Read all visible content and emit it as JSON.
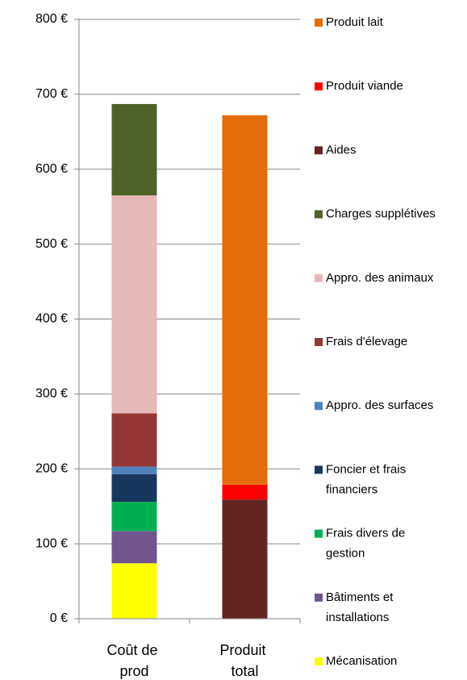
{
  "chart_data": {
    "type": "stacked_bar",
    "categories": [
      "Coût de prod",
      "Produit total"
    ],
    "series": [
      {
        "name": "Mécanisation",
        "color": "#ffff00",
        "values": [
          74,
          null
        ]
      },
      {
        "name": "Bâtiments et installations",
        "color": "#70558f",
        "values": [
          43,
          null
        ]
      },
      {
        "name": "Frais divers de gestion",
        "color": "#00b050",
        "values": [
          39,
          null
        ]
      },
      {
        "name": "Foncier et frais financiers",
        "color": "#17375e",
        "values": [
          37,
          null
        ]
      },
      {
        "name": "Appro. des surfaces",
        "color": "#4f81bd",
        "values": [
          10,
          null
        ]
      },
      {
        "name": "Frais d'élevage",
        "color": "#953735",
        "values": [
          71,
          null
        ]
      },
      {
        "name": "Appro. des animaux",
        "color": "#e6b9b8",
        "values": [
          291,
          null
        ]
      },
      {
        "name": "Charges supplétives",
        "color": "#4f6228",
        "values": [
          122,
          null
        ]
      },
      {
        "name": "Aides",
        "color": "#632523",
        "values": [
          null,
          159
        ]
      },
      {
        "name": "Produit viande",
        "color": "#ff0000",
        "values": [
          null,
          20
        ]
      },
      {
        "name": "Produit lait",
        "color": "#e46c0a",
        "values": [
          null,
          493
        ]
      }
    ],
    "ylim": [
      0,
      800
    ],
    "yticks": [
      {
        "value": 0,
        "label": "0 €"
      },
      {
        "value": 100,
        "label": "100 €"
      },
      {
        "value": 200,
        "label": "200 €"
      },
      {
        "value": 300,
        "label": "300 €"
      },
      {
        "value": 400,
        "label": "400 €"
      },
      {
        "value": 500,
        "label": "500 €"
      },
      {
        "value": 600,
        "label": "600 €"
      },
      {
        "value": 700,
        "label": "700 €"
      },
      {
        "value": 800,
        "label": "800 €"
      }
    ],
    "grid": true
  }
}
